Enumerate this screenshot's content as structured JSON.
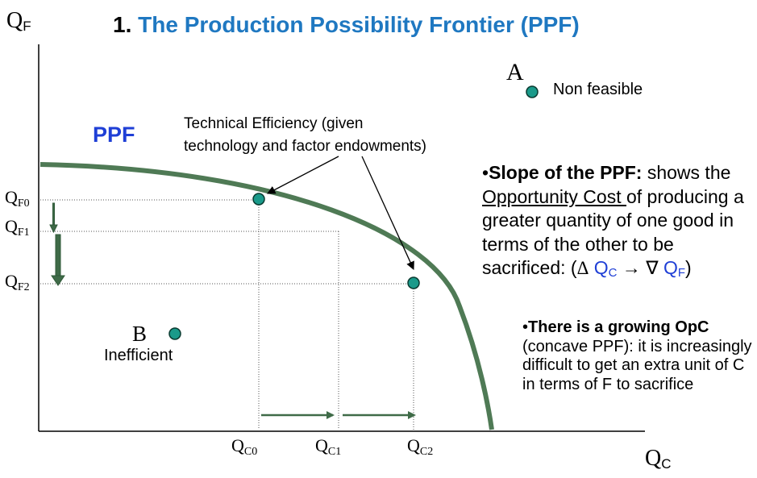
{
  "title": {
    "number": "1.",
    "text": "The Production Possibility Frontier (PPF)"
  },
  "axes": {
    "y_main": "Q",
    "y_sub": "F",
    "x_main": "Q",
    "x_sub": "C"
  },
  "y_ticks": [
    {
      "main": "Q",
      "sub": "F0"
    },
    {
      "main": "Q",
      "sub": "F1"
    },
    {
      "main": "Q",
      "sub": "F2"
    }
  ],
  "x_ticks": [
    {
      "main": "Q",
      "sub": "C0"
    },
    {
      "main": "Q",
      "sub": "C1"
    },
    {
      "main": "Q",
      "sub": "C2"
    }
  ],
  "curve_label": "PPF",
  "technical_efficiency": {
    "line1": "Technical Efficiency (given",
    "line2": "technology and factor endowments)"
  },
  "point_a": {
    "letter": "A",
    "label": "Non feasible"
  },
  "point_b": {
    "letter": "B",
    "label": "Inefficient"
  },
  "slope_note": {
    "bullet": "•",
    "bold": "Slope of the PPF:",
    "text1": " shows the ",
    "underlined": "Opportunity Cost ",
    "text2": "of producing a greater quantity of one good in terms of the other to be sacrificed: (",
    "delta": "Δ",
    "qc_main": "Q",
    "qc_sub": "C",
    "arrow": " → ",
    "nabla": "∇",
    "qf_main": "Q",
    "qf_sub": "F",
    "close": ")"
  },
  "opc_note": {
    "bullet": "•",
    "bold": "There is a growing OpC",
    "text": " (concave PPF): it is increasingly difficult to get an extra unit of C in terms of F to sacrifice"
  },
  "colors": {
    "curve": "#4f7a55",
    "point_fill": "#1a9a8a",
    "title_blue": "#1f78c1",
    "label_blue": "#1f3fd6"
  }
}
